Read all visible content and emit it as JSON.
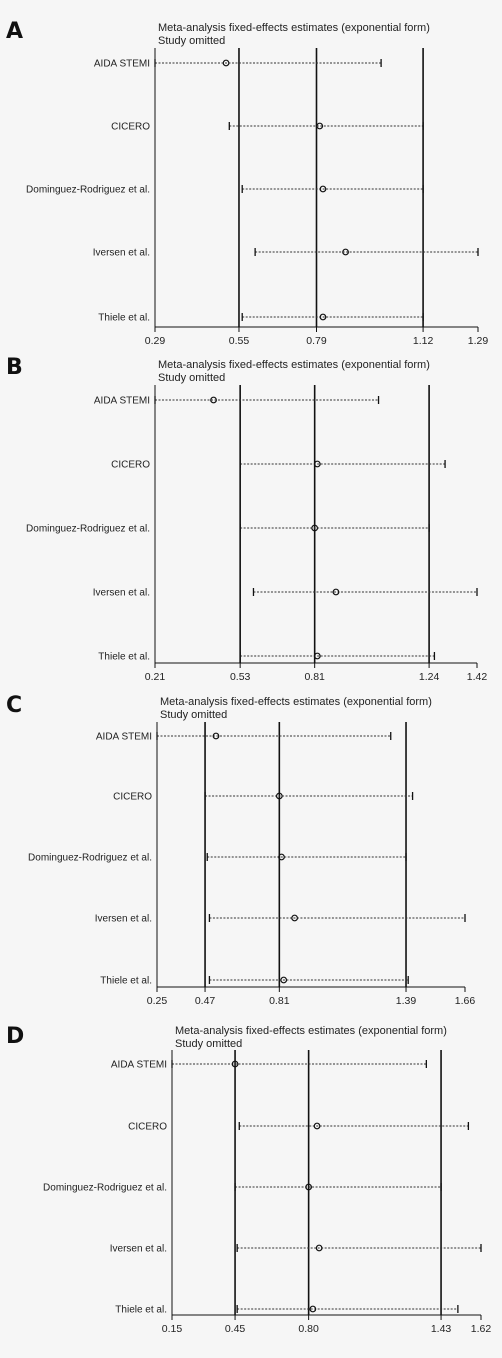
{
  "chart_data": [
    {
      "panel": "A",
      "type": "scatter",
      "title": "Meta-analysis fixed-effects estimates (exponential form)",
      "subtitle": "Study omitted",
      "studies": [
        "AIDA STEMI",
        "CICERO",
        "Dominguez-Rodriguez et al.",
        "Iversen et al.",
        "Thiele et al."
      ],
      "estimates": [
        0.51,
        0.8,
        0.81,
        0.88,
        0.81
      ],
      "ci_low": [
        0.29,
        0.52,
        0.56,
        0.6,
        0.56
      ],
      "ci_high": [
        0.99,
        1.12,
        1.12,
        1.29,
        1.12
      ],
      "reference_lines": [
        0.55,
        0.79,
        1.12
      ],
      "ticks": [
        "0.29",
        "0.55",
        "0.79",
        "1.12",
        "1.29"
      ],
      "tick_values": [
        0.29,
        0.55,
        0.79,
        1.12,
        1.29
      ]
    },
    {
      "panel": "B",
      "type": "scatter",
      "title": "Meta-analysis fixed-effects estimates (exponential form)",
      "subtitle": "Study omitted",
      "studies": [
        "AIDA STEMI",
        "CICERO",
        "Dominguez-Rodriguez et al.",
        "Iversen et al.",
        "Thiele et al."
      ],
      "estimates": [
        0.43,
        0.82,
        0.81,
        0.89,
        0.82
      ],
      "ci_low": [
        0.21,
        0.53,
        0.53,
        0.58,
        0.53
      ],
      "ci_high": [
        1.05,
        1.3,
        1.24,
        1.42,
        1.26
      ],
      "reference_lines": [
        0.53,
        0.81,
        1.24
      ],
      "ticks": [
        "0.21",
        "0.53",
        "0.81",
        "1.24",
        "1.42"
      ],
      "tick_values": [
        0.21,
        0.53,
        0.81,
        1.24,
        1.42
      ]
    },
    {
      "panel": "C",
      "type": "scatter",
      "title": "Meta-analysis fixed-effects estimates (exponential form)",
      "subtitle": "Study omitted",
      "studies": [
        "AIDA STEMI",
        "CICERO",
        "Dominguez-Rodriguez et al.",
        "Iversen et al.",
        "Thiele et al."
      ],
      "estimates": [
        0.52,
        0.81,
        0.82,
        0.88,
        0.83
      ],
      "ci_low": [
        0.25,
        0.47,
        0.48,
        0.49,
        0.49
      ],
      "ci_high": [
        1.32,
        1.42,
        1.39,
        1.66,
        1.4
      ],
      "reference_lines": [
        0.47,
        0.81,
        1.39
      ],
      "ticks": [
        "0.25",
        "0.47",
        "0.81",
        "1.39",
        "1.66"
      ],
      "tick_values": [
        0.25,
        0.47,
        0.81,
        1.39,
        1.66
      ]
    },
    {
      "panel": "D",
      "type": "scatter",
      "title": "Meta-analysis fixed-effects estimates (exponential form)",
      "subtitle": "Study omitted",
      "studies": [
        "AIDA STEMI",
        "CICERO",
        "Dominguez-Rodriguez et al.",
        "Iversen et al.",
        "Thiele et al."
      ],
      "estimates": [
        0.45,
        0.84,
        0.8,
        0.85,
        0.82
      ],
      "ci_low": [
        0.15,
        0.47,
        0.45,
        0.46,
        0.46
      ],
      "ci_high": [
        1.36,
        1.56,
        1.43,
        1.62,
        1.51
      ],
      "reference_lines": [
        0.45,
        0.8,
        1.43
      ],
      "ticks": [
        "0.15",
        "0.45",
        "0.80",
        "1.43",
        "1.62"
      ],
      "tick_values": [
        0.15,
        0.45,
        0.8,
        1.43,
        1.62
      ]
    }
  ]
}
